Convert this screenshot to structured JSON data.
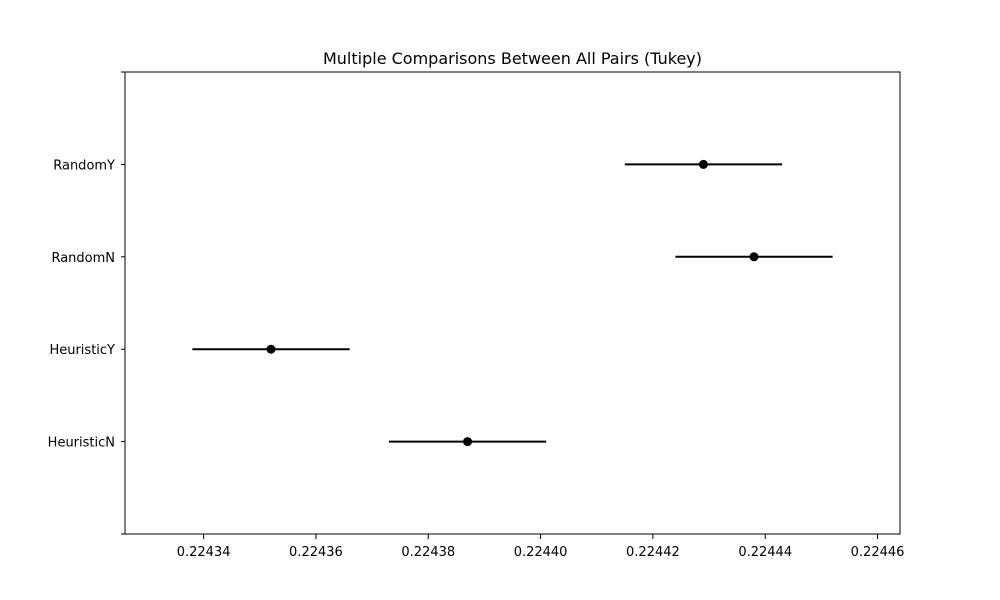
{
  "chart_data": {
    "type": "scatter",
    "title": "Multiple Comparisons Between All Pairs (Tukey)",
    "xlabel": "",
    "ylabel": "",
    "xlim": [
      0.224326,
      0.224464
    ],
    "xticks": [
      0.22434,
      0.22436,
      0.22438,
      0.2244,
      0.22442,
      0.22444,
      0.22446
    ],
    "xtick_labels": [
      "0.22434",
      "0.22436",
      "0.22438",
      "0.22440",
      "0.22442",
      "0.22444",
      "0.22446"
    ],
    "categories": [
      "HeuristicN",
      "HeuristicY",
      "RandomN",
      "RandomY"
    ],
    "means": [
      0.224387,
      0.224352,
      0.224438,
      0.224429
    ],
    "ci_lower": [
      0.224373,
      0.224338,
      0.224424,
      0.224415
    ],
    "ci_upper": [
      0.224401,
      0.224366,
      0.224452,
      0.224443
    ],
    "grid": false,
    "legend": "none",
    "colors": {
      "marker": "#000000",
      "line": "#000000",
      "axes": "#000000"
    }
  }
}
